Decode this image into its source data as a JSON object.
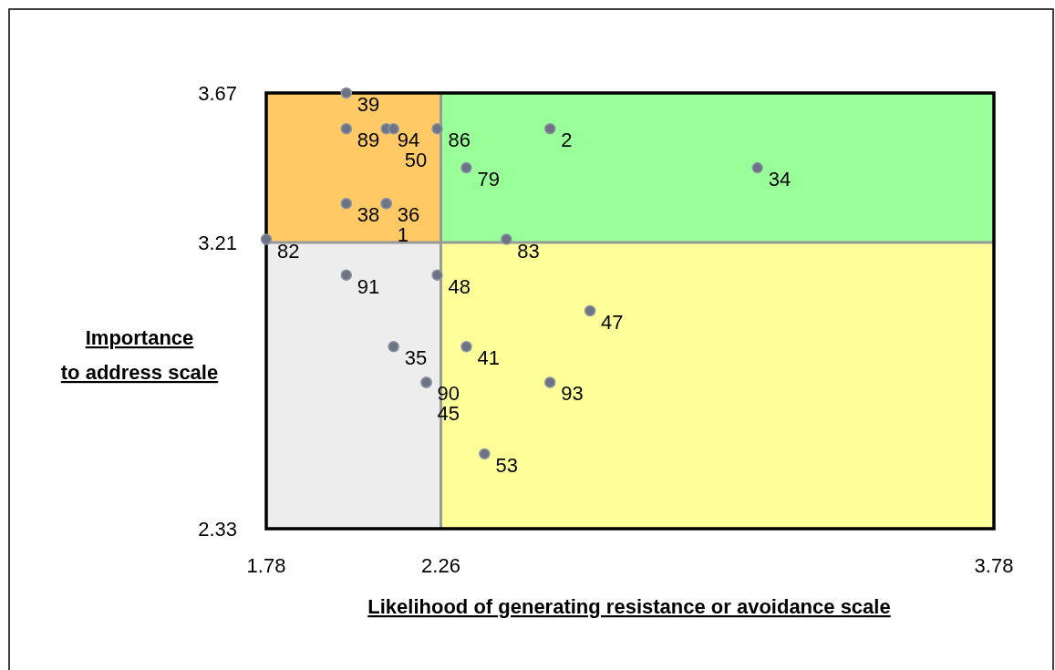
{
  "chart_data": {
    "type": "scatter",
    "xlabel": "Likelihood of generating resistance or avoidance scale",
    "ylabel": "Importance\nto address scale",
    "series": [
      {
        "name": "39",
        "x": [
          2.0
        ],
        "values": [
          3.67
        ]
      },
      {
        "name": "89",
        "x": [
          2.0
        ],
        "values": [
          3.56
        ]
      },
      {
        "name": "94",
        "x": [
          2.11
        ],
        "values": [
          3.56
        ]
      },
      {
        "name": "50",
        "x": [
          2.13
        ],
        "values": [
          3.56
        ]
      },
      {
        "name": "86",
        "x": [
          2.25
        ],
        "values": [
          3.56
        ]
      },
      {
        "name": "2",
        "x": [
          2.56
        ],
        "values": [
          3.56
        ]
      },
      {
        "name": "79",
        "x": [
          2.33
        ],
        "values": [
          3.44
        ]
      },
      {
        "name": "34",
        "x": [
          3.13
        ],
        "values": [
          3.44
        ]
      },
      {
        "name": "38",
        "x": [
          2.0
        ],
        "values": [
          3.33
        ]
      },
      {
        "name": "36",
        "x": [
          2.11
        ],
        "values": [
          3.33
        ]
      },
      {
        "name": "1",
        "x": [
          2.11
        ],
        "values": [
          3.33
        ]
      },
      {
        "name": "82",
        "x": [
          1.78
        ],
        "values": [
          3.22
        ]
      },
      {
        "name": "83",
        "x": [
          2.44
        ],
        "values": [
          3.22
        ]
      },
      {
        "name": "91",
        "x": [
          2.0
        ],
        "values": [
          3.11
        ]
      },
      {
        "name": "48",
        "x": [
          2.25
        ],
        "values": [
          3.11
        ]
      },
      {
        "name": "47",
        "x": [
          2.67
        ],
        "values": [
          3.0
        ]
      },
      {
        "name": "35",
        "x": [
          2.13
        ],
        "values": [
          2.89
        ]
      },
      {
        "name": "41",
        "x": [
          2.33
        ],
        "values": [
          2.89
        ]
      },
      {
        "name": "90",
        "x": [
          2.22
        ],
        "values": [
          2.78
        ]
      },
      {
        "name": "45",
        "x": [
          2.22
        ],
        "values": [
          2.78
        ]
      },
      {
        "name": "93",
        "x": [
          2.56
        ],
        "values": [
          2.78
        ]
      },
      {
        "name": "53",
        "x": [
          2.38
        ],
        "values": [
          2.56
        ]
      }
    ],
    "color": "#6b7385",
    "marker": "circle",
    "xlim": [
      1.78,
      3.78
    ],
    "xticks": [
      1.78,
      2.26,
      3.78
    ],
    "ylim": [
      2.33,
      3.67
    ],
    "yticks": [
      2.33,
      3.21,
      3.67
    ],
    "ref_lines": [
      {
        "axis": "x",
        "value": 2.26,
        "color": "#999999"
      },
      {
        "axis": "y",
        "value": 3.21,
        "color": "#999999"
      }
    ],
    "bands": [
      {
        "axis": "y",
        "from": 3.21,
        "to": 3.67,
        "color": "#ffc966"
      },
      {
        "axis": "y",
        "from": 3.21,
        "to": 3.67,
        "color": "#99ff99"
      },
      {
        "axis": "y",
        "from": 2.33,
        "to": 3.21,
        "color": "#ededed"
      },
      {
        "axis": "y",
        "from": 2.33,
        "to": 3.21,
        "color": "#ffff99"
      }
    ],
    "legend": false
  }
}
